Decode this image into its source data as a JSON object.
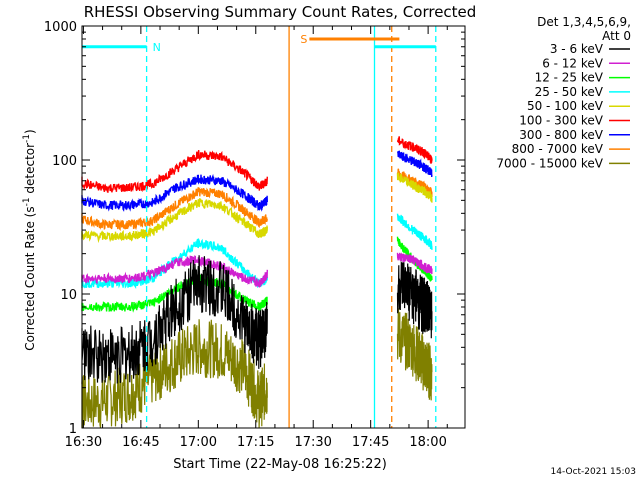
{
  "chart_data": {
    "type": "line",
    "title": "RHESSI Observing Summary Count Rates, Corrected",
    "xlabel": "Start Time (22-May-08 16:25:22)",
    "ylabel_main": "Corrected Count Rate (s",
    "ylabel_sup1": "-1",
    "ylabel_mid": " detector",
    "ylabel_sup2": "-1",
    "ylabel_end": ")",
    "yscale": "log",
    "ylim": [
      1,
      1000
    ],
    "xlim_minutes": [
      -0.37,
      99.63
    ],
    "x_tick_labels": [
      "16:30",
      "16:45",
      "17:00",
      "17:15",
      "17:30",
      "17:45",
      "18:00"
    ],
    "x_tick_minutes": [
      0,
      15,
      30,
      45,
      60,
      75,
      90
    ],
    "y_tick_labels": [
      "1",
      "10",
      "100",
      "1000"
    ],
    "y_tick_values": [
      1,
      10,
      100,
      1000
    ],
    "legend_title_1": "Det 1,3,4,5,6,9,",
    "legend_title_2": "Att 0",
    "legend_position": "top-right",
    "timestamp": "14-Oct-2021 15:03",
    "series": [
      {
        "name": "3 - 6 keV",
        "color": "#000000",
        "x": [
          -3,
          5,
          12,
          18,
          24,
          30,
          36,
          42,
          46,
          48,
          62,
          67,
          71,
          75,
          78,
          82,
          86,
          89,
          91
        ],
        "y": [
          3.5,
          3.5,
          3.5,
          4.5,
          8,
          12,
          11,
          6,
          4.5,
          6,
          null,
          null,
          null,
          null,
          null,
          11,
          10,
          8,
          7
        ]
      },
      {
        "name": "6 - 12 keV",
        "color": "#d020d0",
        "x": [
          -3,
          5,
          12,
          18,
          24,
          30,
          36,
          42,
          46,
          48,
          82,
          86,
          89,
          91
        ],
        "y": [
          13,
          13,
          13,
          14,
          17,
          18,
          16,
          13,
          12,
          14,
          19,
          18,
          16,
          15
        ]
      },
      {
        "name": "12 - 25 keV",
        "color": "#00ff00",
        "x": [
          -3,
          5,
          12,
          18,
          24,
          30,
          36,
          42,
          46,
          48,
          82,
          86,
          89,
          91
        ],
        "y": [
          8,
          8,
          8,
          8.5,
          11,
          13,
          12,
          9,
          8,
          9,
          25,
          18,
          15,
          13
        ]
      },
      {
        "name": "25 - 50 keV",
        "color": "#00ffff",
        "x": [
          -3,
          5,
          12,
          18,
          24,
          30,
          36,
          42,
          46,
          48,
          82,
          86,
          89,
          91
        ],
        "y": [
          12,
          12,
          12,
          13,
          18,
          24,
          22,
          15,
          12,
          13,
          38,
          30,
          26,
          23
        ]
      },
      {
        "name": "50 - 100 keV",
        "color": "#d8d800",
        "x": [
          -3,
          5,
          12,
          18,
          24,
          30,
          36,
          42,
          46,
          48,
          82,
          86,
          89,
          91
        ],
        "y": [
          28,
          27,
          27,
          29,
          38,
          48,
          46,
          34,
          28,
          30,
          75,
          65,
          58,
          52
        ]
      },
      {
        "name": "100 - 300 keV",
        "color": "#ff0000",
        "x": [
          -3,
          5,
          12,
          18,
          24,
          30,
          36,
          42,
          46,
          48,
          82,
          86,
          89,
          91
        ],
        "y": [
          70,
          62,
          62,
          66,
          85,
          110,
          106,
          80,
          63,
          70,
          140,
          125,
          113,
          100
        ]
      },
      {
        "name": "300 - 800 keV",
        "color": "#0000ff",
        "x": [
          -3,
          5,
          12,
          18,
          24,
          30,
          36,
          42,
          46,
          48,
          82,
          86,
          89,
          91
        ],
        "y": [
          52,
          46,
          46,
          48,
          62,
          72,
          70,
          55,
          45,
          50,
          110,
          98,
          88,
          80
        ]
      },
      {
        "name": "800 - 7000 keV",
        "color": "#ff8000",
        "x": [
          -3,
          5,
          12,
          18,
          24,
          30,
          36,
          42,
          46,
          48,
          82,
          86,
          89,
          91
        ],
        "y": [
          38,
          33,
          33,
          35,
          46,
          58,
          56,
          42,
          34,
          37,
          80,
          70,
          63,
          57
        ]
      },
      {
        "name": "7000 - 15000 keV",
        "color": "#808000",
        "x": [
          -3,
          5,
          12,
          18,
          24,
          30,
          36,
          42,
          46,
          48,
          82,
          86,
          89,
          91
        ],
        "y": [
          1.5,
          1.6,
          1.8,
          2.4,
          3.2,
          4.0,
          3.8,
          2.8,
          1.6,
          2.0,
          5,
          4,
          3,
          2.5
        ]
      }
    ],
    "markers": [
      {
        "label": "N",
        "color": "#00ffff",
        "bar_start": -1,
        "bar_end": 16.5,
        "level": 700
      },
      {
        "label": "S",
        "color": "#ff8000",
        "bar_start": 59,
        "bar_end": 82.5,
        "level": 800
      },
      {
        "label": "",
        "color": "#00ffff",
        "bar_start": 76,
        "bar_end": 92,
        "level": 700
      }
    ],
    "vertical_lines": [
      {
        "x_min": 16.5,
        "color": "#00ffff",
        "style": "dashed"
      },
      {
        "x_min": 53.7,
        "color": "#ff8000",
        "style": "solid"
      },
      {
        "x_min": 76.0,
        "color": "#00ffff",
        "style": "solid"
      },
      {
        "x_min": 80.5,
        "color": "#ff8000",
        "style": "dashed"
      },
      {
        "x_min": 92.0,
        "color": "#00ffff",
        "style": "dashed"
      }
    ]
  }
}
